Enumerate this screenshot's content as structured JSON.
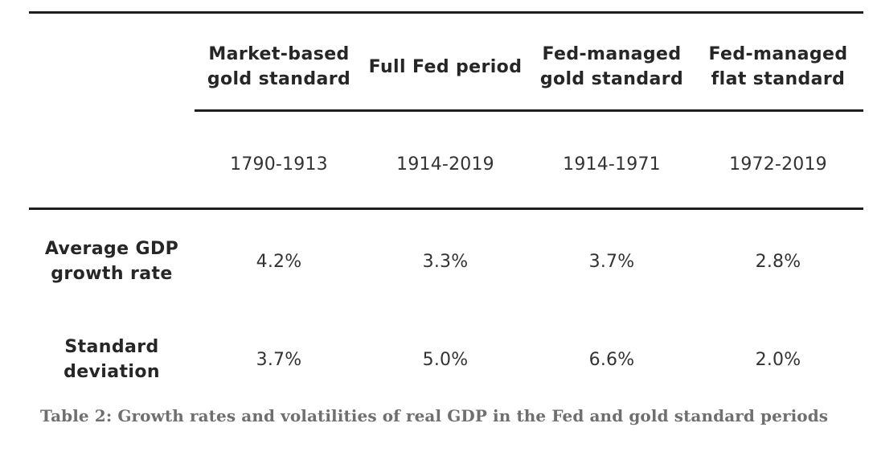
{
  "table": {
    "columns": [
      {
        "header_lines": [
          "Market-based",
          "gold standard"
        ],
        "period": "1790-1913"
      },
      {
        "header_lines": [
          "Full Fed period"
        ],
        "period": "1914-2019"
      },
      {
        "header_lines": [
          "Fed-managed",
          "gold standard"
        ],
        "period": "1914-1971"
      },
      {
        "header_lines": [
          "Fed-managed",
          "flat standard"
        ],
        "period": "1972-2019"
      }
    ],
    "rows": [
      {
        "label_lines": [
          "Average GDP",
          "growth rate"
        ],
        "values": [
          "4.2%",
          "3.3%",
          "3.7%",
          "2.8%"
        ]
      },
      {
        "label_lines": [
          "Standard",
          "deviation"
        ],
        "values": [
          "3.7%",
          "5.0%",
          "6.6%",
          "2.0%"
        ]
      }
    ]
  },
  "caption": "Table 2: Growth rates and volatilities of real GDP in the Fed and gold standard periods"
}
